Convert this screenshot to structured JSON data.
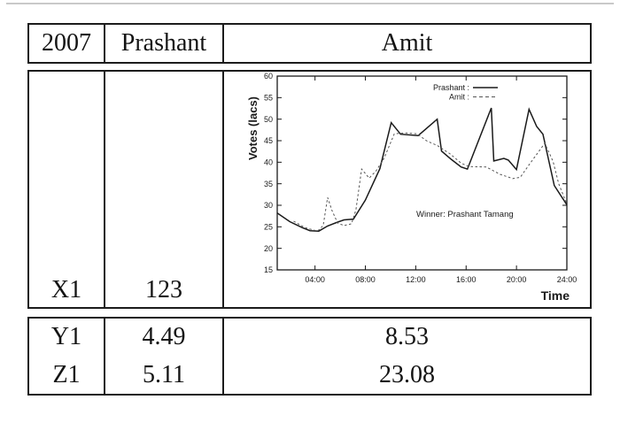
{
  "table": {
    "header": {
      "year": "2007",
      "col2": "Prashant",
      "col3": "Amit"
    },
    "mid_row": {
      "label": "X1",
      "value": "123"
    },
    "rows": [
      {
        "label": "Y1",
        "col2": "4.49",
        "col3": "8.53"
      },
      {
        "label": "Z1",
        "col2": "5.11",
        "col3": "23.08"
      }
    ]
  },
  "chart_data": {
    "type": "line",
    "title": "",
    "xlabel": "Time",
    "ylabel": "Votes (lacs)",
    "xlim": [
      1,
      24
    ],
    "ylim": [
      15,
      60
    ],
    "grid": false,
    "yticks": [
      15,
      20,
      25,
      30,
      35,
      40,
      45,
      50,
      55,
      60
    ],
    "xticks": [
      4,
      8,
      12,
      16,
      20,
      24
    ],
    "xtick_labels": [
      "04:00",
      "08:00",
      "12:00",
      "16:00",
      "20:00",
      "24:00"
    ],
    "legend_position": "top-right-inside",
    "annotation": "Winner: Prashant Tamang",
    "legend": [
      {
        "label": "Prashant :",
        "style": "solid"
      },
      {
        "label": "Amit :",
        "style": "dashed"
      }
    ],
    "colors": {
      "solid": "#1a1a1a",
      "dashed": "#555555"
    },
    "series": [
      {
        "name": "Prashant",
        "style": "solid",
        "points": [
          [
            1,
            28.2
          ],
          [
            2,
            26.2
          ],
          [
            3,
            24.8
          ],
          [
            3.6,
            24.1
          ],
          [
            4.3,
            24.0
          ],
          [
            5,
            25.2
          ],
          [
            5.8,
            26.1
          ],
          [
            6.3,
            26.6
          ],
          [
            7.05,
            26.8
          ],
          [
            8,
            31.2
          ],
          [
            9.15,
            38.5
          ],
          [
            10.05,
            49.2
          ],
          [
            10.8,
            46.5
          ],
          [
            12.2,
            46.2
          ],
          [
            13.7,
            50.0
          ],
          [
            14.05,
            42.6
          ],
          [
            14.8,
            40.7
          ],
          [
            15.6,
            38.9
          ],
          [
            16.1,
            38.4
          ],
          [
            18.0,
            52.6
          ],
          [
            18.2,
            40.3
          ],
          [
            19.0,
            40.9
          ],
          [
            19.35,
            40.5
          ],
          [
            20.0,
            38.3
          ],
          [
            21.0,
            52.3
          ],
          [
            21.6,
            48.3
          ],
          [
            22.1,
            46.5
          ],
          [
            23.0,
            34.6
          ],
          [
            24,
            30.1
          ]
        ]
      },
      {
        "name": "Amit",
        "style": "dashed",
        "points": [
          [
            2.3,
            26.3
          ],
          [
            3.2,
            24.8
          ],
          [
            4.2,
            24.0
          ],
          [
            4.65,
            25.3
          ],
          [
            5.0,
            31.8
          ],
          [
            5.35,
            28.8
          ],
          [
            5.8,
            25.9
          ],
          [
            6.3,
            25.3
          ],
          [
            6.9,
            25.7
          ],
          [
            7.25,
            29.0
          ],
          [
            7.7,
            38.4
          ],
          [
            8.3,
            36.3
          ],
          [
            8.85,
            38.0
          ],
          [
            9.5,
            41.0
          ],
          [
            10.3,
            46.6
          ],
          [
            11.2,
            46.8
          ],
          [
            12.1,
            46.6
          ],
          [
            12.9,
            44.9
          ],
          [
            13.7,
            43.9
          ],
          [
            14.7,
            42.0
          ],
          [
            15.6,
            39.8
          ],
          [
            16.2,
            39.0
          ],
          [
            17.6,
            38.9
          ],
          [
            18.7,
            37.2
          ],
          [
            19.7,
            36.2
          ],
          [
            20.3,
            36.5
          ],
          [
            21.0,
            39.4
          ],
          [
            21.7,
            42.2
          ],
          [
            22.25,
            44.4
          ],
          [
            22.9,
            40.2
          ],
          [
            23.35,
            35.0
          ],
          [
            24,
            30.3
          ]
        ]
      }
    ]
  }
}
